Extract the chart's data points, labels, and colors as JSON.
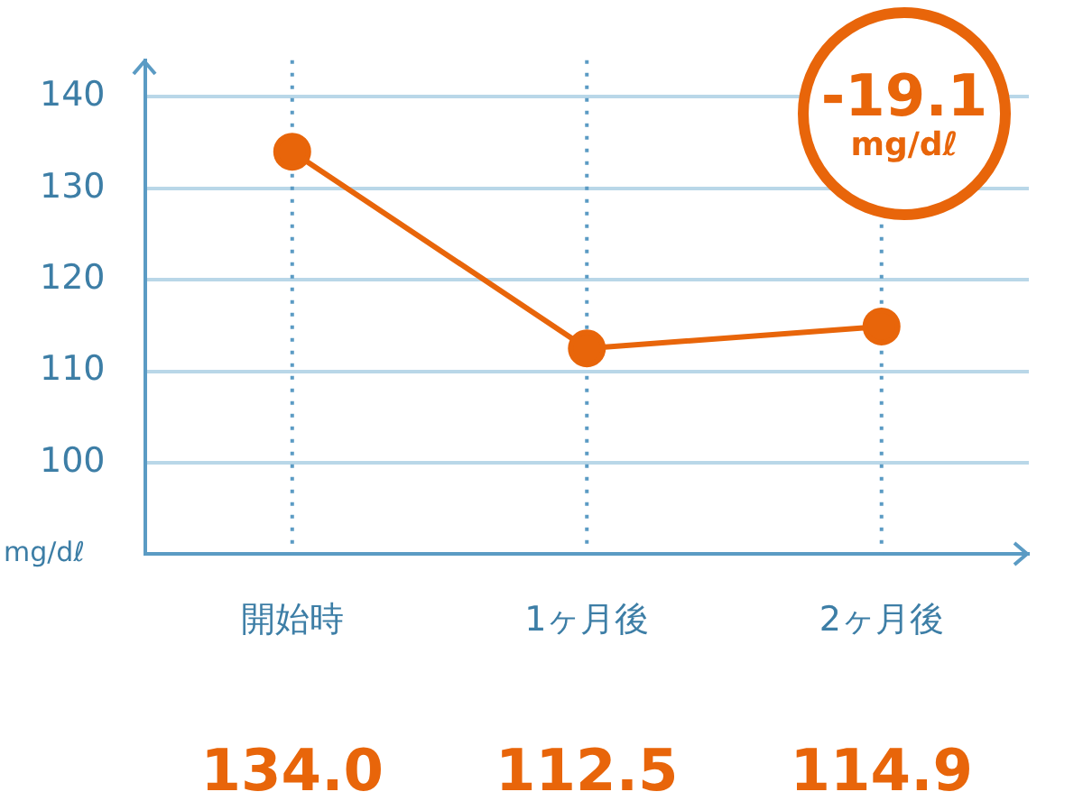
{
  "chart_data": {
    "type": "line",
    "categories": [
      "開始時",
      "1ヶ月後",
      "2ヶ月後"
    ],
    "series": [
      {
        "color": "#e8650a",
        "values": [
          134.0,
          112.5,
          114.9
        ],
        "value_labels": [
          "134.0",
          "112.5",
          "114.9"
        ]
      }
    ],
    "ylabel": "mg/dℓ",
    "ylim": [
      90,
      144
    ],
    "yticks": [
      100,
      110,
      120,
      130,
      140
    ],
    "grid": true,
    "marker": "circle",
    "line_style": "solid",
    "annotations": [
      "-19.1",
      "mg/dℓ"
    ]
  }
}
